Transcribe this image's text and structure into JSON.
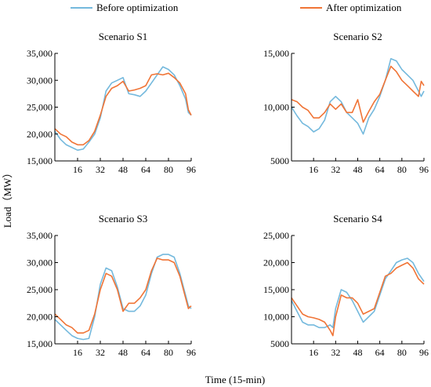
{
  "legend": [
    {
      "name": "Before optimization",
      "color": "#74b9dd"
    },
    {
      "name": "After optimization",
      "color": "#f07436"
    }
  ],
  "xlabel": "Time (15-min)",
  "ylabel": "Load（MW）",
  "chart_data": [
    {
      "type": "line",
      "title": "Scenario S1",
      "xticks": [
        16,
        32,
        48,
        64,
        80,
        96
      ],
      "xtick_labels": [
        "16",
        "32",
        "48",
        "64",
        "80",
        "96"
      ],
      "xlim": [
        0,
        96
      ],
      "ylim": [
        15000,
        35000
      ],
      "yticks": [
        15000,
        20000,
        25000,
        30000,
        35000
      ],
      "ytick_labels": [
        "15,000",
        "20,000",
        "25,000",
        "30,000",
        "35,000"
      ],
      "series": [
        {
          "name": "Before optimization",
          "x": [
            0,
            4,
            8,
            12,
            16,
            20,
            24,
            28,
            32,
            36,
            40,
            44,
            48,
            52,
            56,
            60,
            64,
            68,
            72,
            76,
            80,
            84,
            88,
            92,
            94,
            96
          ],
          "values": [
            20500,
            19000,
            18000,
            17500,
            17000,
            17200,
            18500,
            20000,
            23000,
            28000,
            29500,
            30000,
            30500,
            27500,
            27300,
            27000,
            28000,
            29500,
            31000,
            32500,
            32000,
            31000,
            29000,
            26500,
            24000,
            23500
          ]
        },
        {
          "name": "After optimization",
          "x": [
            0,
            4,
            8,
            12,
            16,
            20,
            24,
            28,
            32,
            36,
            40,
            44,
            48,
            52,
            56,
            60,
            64,
            68,
            72,
            76,
            80,
            84,
            88,
            92,
            94,
            96
          ],
          "values": [
            21000,
            20000,
            19500,
            18500,
            18000,
            18000,
            18800,
            20500,
            23500,
            27000,
            28500,
            29000,
            29800,
            28000,
            28200,
            28500,
            29000,
            31000,
            31200,
            31000,
            31300,
            30500,
            29500,
            27500,
            24500,
            23500
          ]
        }
      ]
    },
    {
      "type": "line",
      "title": "Scenario S2",
      "xticks": [
        16,
        32,
        48,
        64,
        80,
        96
      ],
      "xtick_labels": [
        "16",
        "32",
        "48",
        "64",
        "80",
        "96"
      ],
      "xlim": [
        0,
        96
      ],
      "ylim": [
        5000,
        15000
      ],
      "yticks": [
        5000,
        10000,
        15000
      ],
      "ytick_labels": [
        "5000",
        "10,000",
        "15,000"
      ],
      "series": [
        {
          "name": "Before optimization",
          "x": [
            0,
            4,
            8,
            12,
            16,
            20,
            24,
            28,
            32,
            36,
            40,
            44,
            48,
            52,
            56,
            60,
            64,
            68,
            72,
            76,
            80,
            84,
            88,
            92,
            94,
            96
          ],
          "values": [
            10000,
            9200,
            8500,
            8200,
            7700,
            8000,
            8800,
            10500,
            11000,
            10500,
            9500,
            9000,
            8500,
            7500,
            9000,
            9800,
            11000,
            12500,
            14500,
            14300,
            13500,
            13000,
            12500,
            11500,
            11000,
            11500
          ]
        },
        {
          "name": "After optimization",
          "x": [
            0,
            4,
            8,
            12,
            16,
            20,
            24,
            28,
            32,
            36,
            40,
            44,
            48,
            52,
            56,
            60,
            64,
            68,
            72,
            76,
            80,
            84,
            88,
            92,
            94,
            96
          ],
          "values": [
            10700,
            10500,
            10000,
            9700,
            9000,
            9000,
            9500,
            10300,
            9800,
            10300,
            9500,
            9500,
            10700,
            8600,
            9600,
            10500,
            11200,
            12500,
            13800,
            13300,
            12500,
            12000,
            11500,
            11000,
            12400,
            12000
          ]
        }
      ]
    },
    {
      "type": "line",
      "title": "Scenario S3",
      "xticks": [
        16,
        32,
        48,
        64,
        80,
        96
      ],
      "xtick_labels": [
        "16",
        "32",
        "48",
        "64",
        "80",
        "96"
      ],
      "xlim": [
        0,
        96
      ],
      "ylim": [
        15000,
        35000
      ],
      "yticks": [
        15000,
        20000,
        25000,
        30000,
        35000
      ],
      "ytick_labels": [
        "15,000",
        "20,000",
        "25,000",
        "30,000",
        "35,000"
      ],
      "series": [
        {
          "name": "Before optimization",
          "x": [
            0,
            4,
            8,
            12,
            16,
            20,
            24,
            28,
            32,
            36,
            40,
            44,
            48,
            52,
            56,
            60,
            64,
            68,
            72,
            76,
            80,
            84,
            88,
            92,
            94,
            96
          ],
          "values": [
            19500,
            18500,
            17500,
            16500,
            16000,
            15800,
            16000,
            20000,
            26000,
            29000,
            28500,
            25500,
            21500,
            21000,
            21000,
            22000,
            24000,
            28000,
            31000,
            31500,
            31500,
            31000,
            28000,
            24000,
            22000,
            21500
          ]
        },
        {
          "name": "After optimization",
          "x": [
            0,
            4,
            8,
            12,
            16,
            20,
            24,
            28,
            32,
            36,
            40,
            44,
            48,
            52,
            56,
            60,
            64,
            68,
            72,
            76,
            80,
            84,
            88,
            92,
            94,
            96
          ],
          "values": [
            20500,
            19500,
            18500,
            18000,
            17000,
            17000,
            17500,
            20500,
            25000,
            28000,
            27500,
            25000,
            21000,
            22500,
            22500,
            23500,
            25000,
            28500,
            30800,
            30500,
            30500,
            30000,
            27500,
            23500,
            21500,
            22000
          ]
        }
      ]
    },
    {
      "type": "line",
      "title": "Scenario S4",
      "xticks": [
        16,
        32,
        48,
        64,
        80,
        96
      ],
      "xtick_labels": [
        "16",
        "32",
        "48",
        "64",
        "80",
        "96"
      ],
      "xlim": [
        0,
        96
      ],
      "ylim": [
        5000,
        25000
      ],
      "yticks": [
        5000,
        10000,
        15000,
        20000,
        25000
      ],
      "ytick_labels": [
        "5000",
        "10,000",
        "15,000",
        "20,000",
        "25,000"
      ],
      "series": [
        {
          "name": "Before optimization",
          "x": [
            0,
            4,
            8,
            12,
            16,
            20,
            24,
            28,
            30,
            32,
            36,
            40,
            44,
            48,
            52,
            56,
            60,
            64,
            68,
            72,
            76,
            80,
            84,
            88,
            92,
            96
          ],
          "values": [
            13000,
            11000,
            9000,
            8500,
            8500,
            8000,
            8000,
            8500,
            8000,
            11500,
            15000,
            14500,
            13000,
            11000,
            9000,
            10000,
            11000,
            14000,
            17000,
            18500,
            20000,
            20500,
            20800,
            20000,
            18000,
            16500
          ]
        },
        {
          "name": "After optimization",
          "x": [
            0,
            4,
            8,
            12,
            16,
            20,
            24,
            28,
            30,
            32,
            36,
            40,
            44,
            48,
            52,
            56,
            60,
            64,
            68,
            72,
            76,
            80,
            84,
            88,
            92,
            96
          ],
          "values": [
            13500,
            12000,
            10500,
            10000,
            9800,
            9500,
            9000,
            7500,
            6500,
            10000,
            14000,
            13500,
            13500,
            12500,
            10500,
            11000,
            11500,
            14500,
            17500,
            18000,
            19000,
            19500,
            20000,
            19000,
            17000,
            16000
          ]
        }
      ]
    }
  ]
}
